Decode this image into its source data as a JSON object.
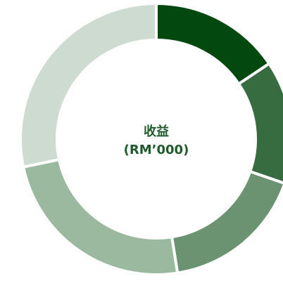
{
  "chart_data": {
    "type": "donut",
    "title": "收益",
    "subtitle": "(RM’000)",
    "values": [
      15.6,
      14.7,
      17.2,
      24.2,
      28.3
    ],
    "colors": [
      "#03490f",
      "#366c3f",
      "#6b9372",
      "#9bb99f",
      "#cddbd0"
    ]
  }
}
